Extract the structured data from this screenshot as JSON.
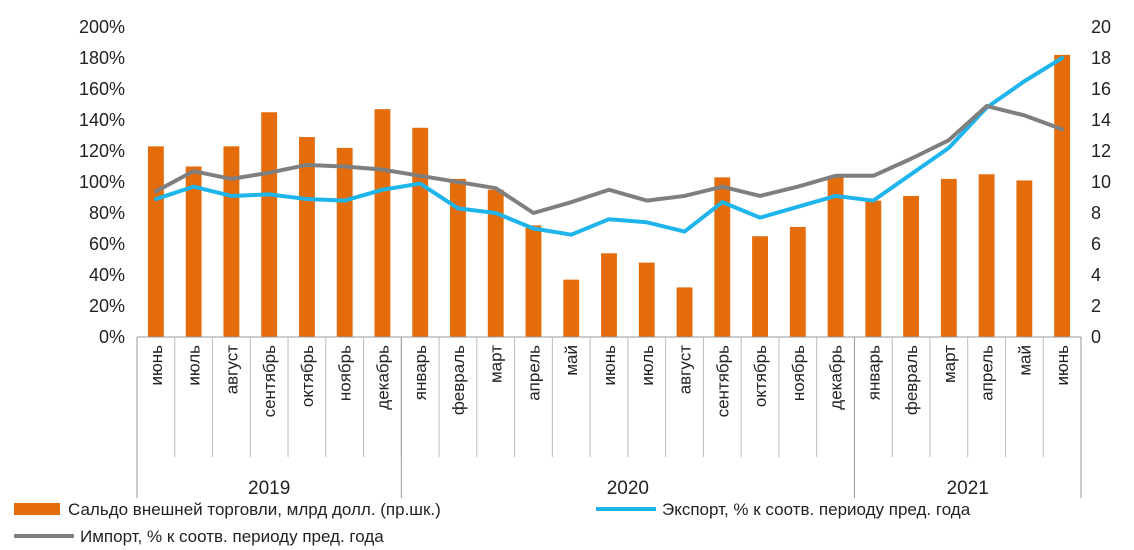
{
  "chart_data": {
    "type": "bar",
    "categories": [
      "июнь",
      "июль",
      "август",
      "сентябрь",
      "октябрь",
      "ноябрь",
      "декабрь",
      "январь",
      "февраль",
      "март",
      "апрель",
      "май",
      "июнь",
      "июль",
      "август",
      "сентябрь",
      "октябрь",
      "ноябрь",
      "декабрь",
      "январь",
      "февраль",
      "март",
      "апрель",
      "май",
      "июнь"
    ],
    "years": [
      {
        "label": "2019",
        "start": 0,
        "end": 6
      },
      {
        "label": "2020",
        "start": 7,
        "end": 18
      },
      {
        "label": "2021",
        "start": 19,
        "end": 24
      }
    ],
    "y_left": {
      "ticks": [
        "0%",
        "20%",
        "40%",
        "60%",
        "80%",
        "100%",
        "120%",
        "140%",
        "160%",
        "180%",
        "200%"
      ],
      "range": [
        0,
        200
      ]
    },
    "y_right": {
      "ticks": [
        "0",
        "2",
        "4",
        "6",
        "8",
        "10",
        "12",
        "14",
        "16",
        "18",
        "20"
      ],
      "range": [
        0,
        20
      ]
    },
    "series": [
      {
        "name": "Сальдо внешней торговли, млрд долл. (пр.шк.)",
        "kind": "bar",
        "axis": "right",
        "color": "#E46C0A",
        "values": [
          12.3,
          11.0,
          12.3,
          14.5,
          12.9,
          12.2,
          14.7,
          13.5,
          10.2,
          9.5,
          7.2,
          3.7,
          5.4,
          4.8,
          3.2,
          10.3,
          6.5,
          7.1,
          10.3,
          8.8,
          9.1,
          10.2,
          10.5,
          10.1,
          18.2
        ]
      },
      {
        "name": "Экспорт, % к соотв. периоду пред. года",
        "kind": "line",
        "axis": "left",
        "color": "#1EB4EC",
        "values": [
          89,
          97,
          91,
          92,
          89,
          88,
          95,
          99,
          83,
          80,
          70,
          66,
          76,
          74,
          68,
          87,
          77,
          84,
          91,
          88,
          105,
          122,
          148,
          165,
          180
        ]
      },
      {
        "name": "Импорт, % к соотв. периоду пред. года",
        "kind": "line",
        "axis": "left",
        "color": "#7F7F7F",
        "values": [
          94,
          107,
          102,
          106,
          111,
          110,
          108,
          104,
          100,
          96,
          80,
          87,
          95,
          88,
          91,
          97,
          91,
          97,
          104,
          104,
          115,
          127,
          149,
          143,
          134
        ]
      }
    ],
    "legend_position": "bottom",
    "grid": false
  }
}
